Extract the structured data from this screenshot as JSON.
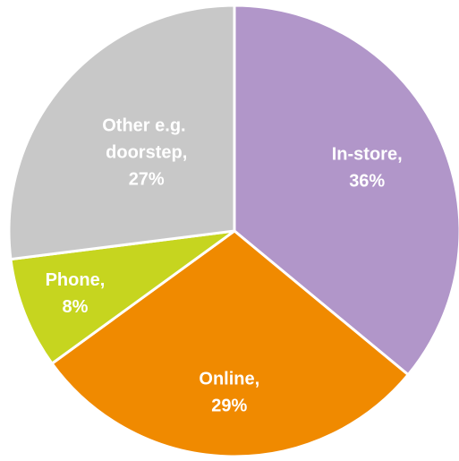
{
  "chart_data": {
    "type": "pie",
    "categories": [
      "In-store,",
      "Online,",
      "Phone,",
      "Other e.g. doorstep,"
    ],
    "values": [
      36,
      29,
      8,
      27
    ],
    "value_labels": [
      "36%",
      "29%",
      "8%",
      "27%"
    ],
    "colors": [
      "#b196c9",
      "#f08a00",
      "#c6d51f",
      "#c8c8c8"
    ]
  }
}
